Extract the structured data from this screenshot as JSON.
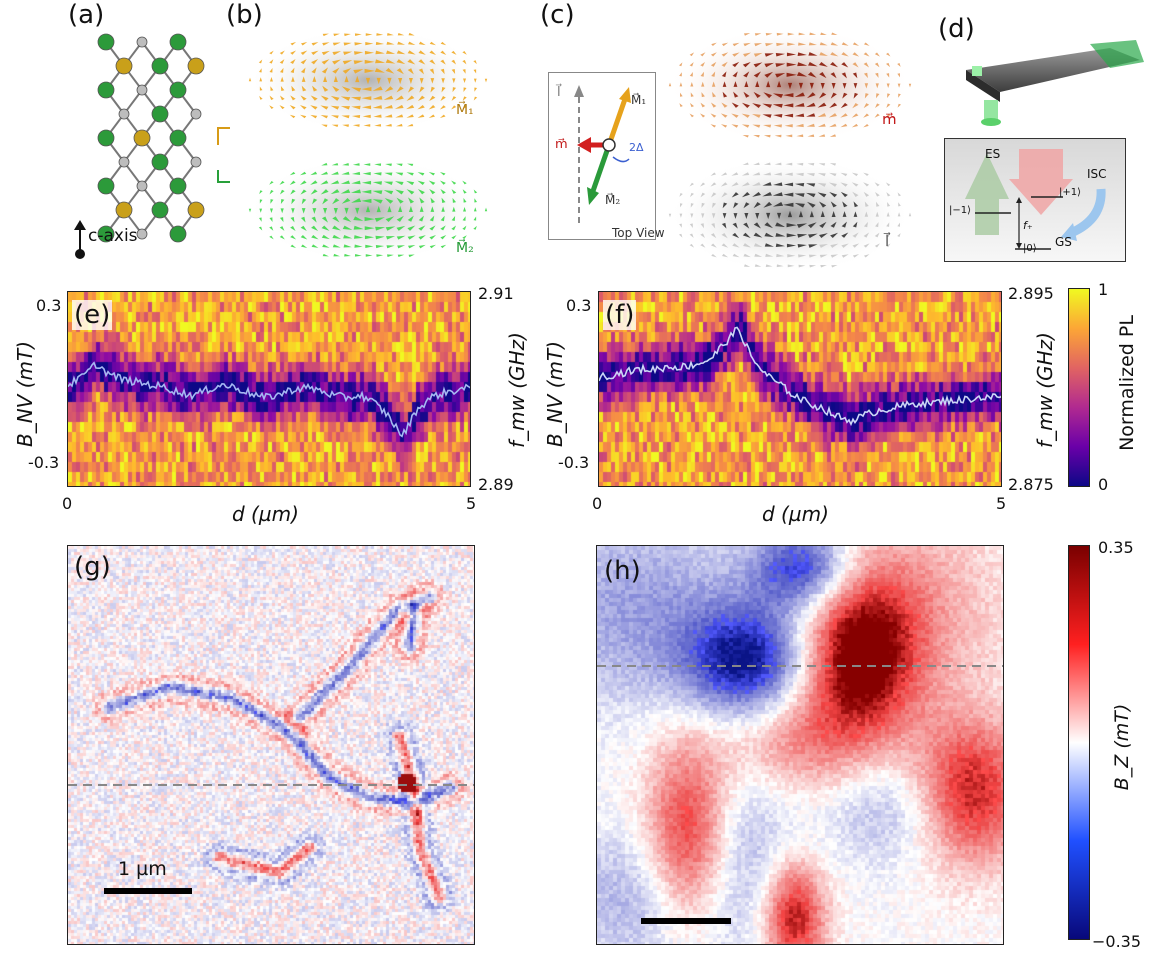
{
  "panels": {
    "a": "(a)",
    "b": "(b)",
    "c": "(c)",
    "d": "(d)",
    "e": "(e)",
    "f": "(f)",
    "g": "(g)",
    "h": "(h)"
  },
  "panel_a": {
    "c_axis_label": "c-axis"
  },
  "panel_b": {
    "m1_label": "M⃗₁",
    "m2_label": "M⃗₂"
  },
  "panel_c": {
    "inset_l": "l⃗",
    "inset_m1": "M⃗₁",
    "inset_m": "m⃗",
    "inset_m2": "M⃗₂",
    "inset_angle": "2Δ",
    "inset_caption": "Top View",
    "m_label": "m⃗",
    "l_label": "l⃗"
  },
  "panel_d": {
    "es": "ES",
    "isc": "ISC",
    "gs": "GS",
    "plus1": "|+1⟩",
    "minus1": "|−1⟩",
    "zero": "|0⟩",
    "fplus": "f₊"
  },
  "chart_data": [
    {
      "type": "heatmap",
      "panel": "(e)",
      "xlabel": "d (µm)",
      "xlim": [
        0,
        5
      ],
      "xticks": [
        "0",
        "5"
      ],
      "ylabel_left": "B_NV (mT)",
      "yticks_left": [
        "0.3",
        "-0.3"
      ],
      "ylabel_right": "f_mw (GHz)",
      "yticks_right": [
        "2.91",
        "2.89"
      ],
      "trace": [
        0.02,
        0.05,
        0.1,
        0.06,
        0.04,
        0.03,
        0.02,
        0.01,
        -0.01,
        -0.02,
        0.0,
        0.02,
        0.01,
        -0.01,
        -0.03,
        -0.02,
        0.0,
        0.01,
        0.0,
        -0.02,
        -0.03,
        -0.02,
        -0.05,
        -0.1,
        -0.18,
        -0.08,
        -0.03,
        -0.01,
        0.0,
        0.01
      ]
    },
    {
      "type": "heatmap",
      "panel": "(f)",
      "xlabel": "d (µm)",
      "xlim": [
        0,
        5
      ],
      "xticks": [
        "0",
        "5"
      ],
      "ylabel_left": "B_NV (mT)",
      "yticks_left": [
        "0.3",
        "-0.3"
      ],
      "ylabel_right": "f_mw (GHz)",
      "yticks_right": [
        "2.895",
        "2.875"
      ],
      "colorbar": {
        "label": "Normalized PL",
        "min": "0",
        "max": "1"
      },
      "trace": [
        0.05,
        0.06,
        0.07,
        0.08,
        0.08,
        0.09,
        0.09,
        0.1,
        0.12,
        0.18,
        0.24,
        0.12,
        0.06,
        0.02,
        -0.02,
        -0.05,
        -0.07,
        -0.1,
        -0.12,
        -0.1,
        -0.08,
        -0.07,
        -0.06,
        -0.05,
        -0.05,
        -0.04,
        -0.04,
        -0.03,
        -0.03,
        -0.02
      ]
    },
    {
      "type": "heatmap",
      "panel": "(g)",
      "scalebar": "1 µm"
    },
    {
      "type": "heatmap",
      "panel": "(h)",
      "colorbar": {
        "label": "B_Z (mT)",
        "min": "−0.35",
        "max": "0.35"
      }
    }
  ]
}
